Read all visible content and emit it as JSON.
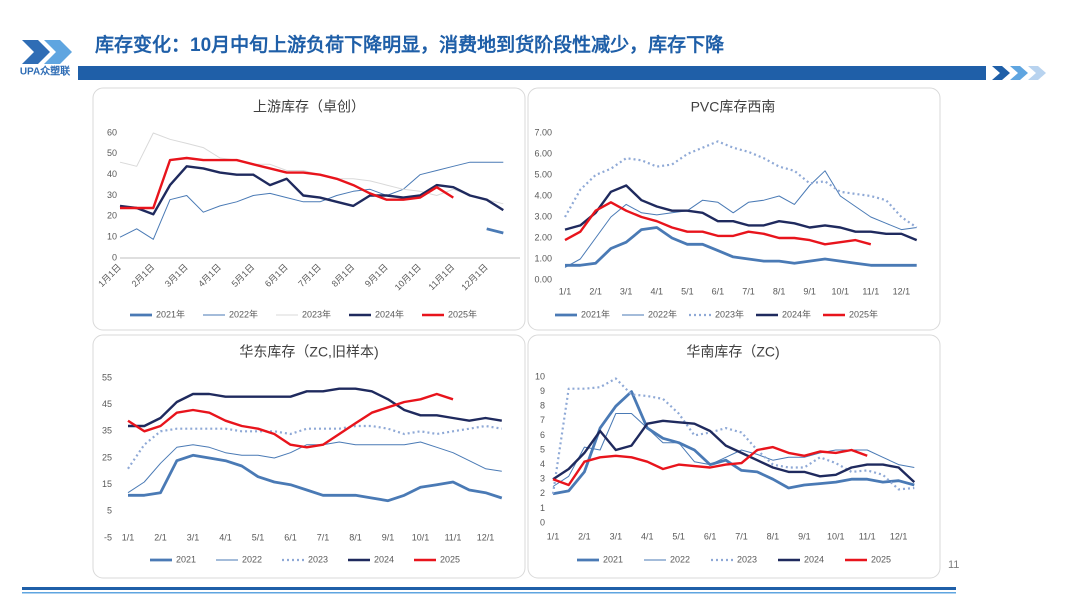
{
  "header": {
    "title": "库存变化：10月中旬上游负荷下降明显，消费地到货阶段性减少，库存下降",
    "logo": "UPA众塑联"
  },
  "page_number": "11",
  "chart_data": [
    {
      "type": "line",
      "title": "上游库存（卓创）",
      "categories": [
        "1月1日",
        null,
        "2月1日",
        null,
        "3月1日",
        null,
        "4月1日",
        null,
        "5月1日",
        null,
        "6月1日",
        null,
        "7月1日",
        null,
        "8月1日",
        null,
        "9月1日",
        null,
        "10月1日",
        null,
        "11月1日",
        null,
        "12月1日",
        null
      ],
      "ylim": [
        0,
        60
      ],
      "yticks": [
        0,
        10,
        20,
        30,
        40,
        50,
        60
      ],
      "grid": false,
      "series": [
        {
          "name": "2021年",
          "color": "#4a7ab5",
          "width": 2.8,
          "dash": false,
          "values": [
            null,
            null,
            null,
            null,
            null,
            null,
            null,
            null,
            null,
            null,
            null,
            null,
            null,
            null,
            null,
            null,
            null,
            null,
            null,
            null,
            null,
            null,
            14,
            12
          ]
        },
        {
          "name": "2022年",
          "color": "#4a7ab5",
          "width": 1,
          "dash": false,
          "values": [
            10,
            14,
            9,
            28,
            30,
            22,
            25,
            27,
            30,
            31,
            29,
            27,
            27,
            30,
            32,
            33,
            30,
            33,
            40,
            42,
            44,
            46,
            46,
            46
          ]
        },
        {
          "name": "2023年",
          "color": "#d9d9d9",
          "width": 1,
          "dash": false,
          "values": [
            46,
            44,
            60,
            57,
            55,
            53,
            48,
            47,
            45,
            45,
            42,
            42,
            40,
            38,
            38,
            37,
            35,
            33,
            32,
            30,
            33,
            30,
            28,
            26
          ]
        },
        {
          "name": "2024年",
          "color": "#1f2a5e",
          "width": 2.4,
          "dash": false,
          "values": [
            25,
            24,
            21,
            35,
            44,
            43,
            41,
            40,
            40,
            35,
            38,
            30,
            29,
            27,
            25,
            30,
            30,
            29,
            30,
            35,
            34,
            30,
            28,
            23
          ]
        },
        {
          "name": "2025年",
          "color": "#e8141c",
          "width": 2.4,
          "dash": false,
          "values": [
            24,
            24,
            24,
            47,
            48,
            47,
            47,
            47,
            45,
            43,
            41,
            41,
            40,
            38,
            35,
            31,
            28,
            28,
            29,
            34,
            29,
            null,
            null,
            null
          ]
        }
      ]
    },
    {
      "type": "line",
      "title": "PVC库存西南",
      "categories": [
        "1/1",
        null,
        "2/1",
        null,
        "3/1",
        null,
        "4/1",
        null,
        "5/1",
        null,
        "6/1",
        null,
        "7/1",
        null,
        "8/1",
        null,
        "9/1",
        null,
        "10/1",
        null,
        "11/1",
        null,
        "12/1",
        null
      ],
      "ylim": [
        0,
        7
      ],
      "yticks": [
        {
          "value": 0,
          "label": "0.00"
        },
        {
          "value": 1,
          "label": "1.00"
        },
        {
          "value": 2,
          "label": "2.00"
        },
        {
          "value": 3,
          "label": "3.00"
        },
        {
          "value": 4,
          "label": "4.00"
        },
        {
          "value": 5,
          "label": "5.00"
        },
        {
          "value": 6,
          "label": "6.00"
        },
        {
          "value": 7,
          "label": "7.00"
        }
      ],
      "grid": false,
      "series": [
        {
          "name": "2021年",
          "color": "#4a7ab5",
          "width": 2.8,
          "dash": false,
          "values": [
            0.7,
            0.7,
            0.8,
            1.5,
            1.8,
            2.4,
            2.5,
            2.0,
            1.7,
            1.7,
            1.4,
            1.1,
            1.0,
            0.9,
            0.9,
            0.8,
            0.9,
            1.0,
            0.9,
            0.8,
            0.7,
            0.7,
            0.7,
            0.7
          ]
        },
        {
          "name": "2022年",
          "color": "#4a7ab5",
          "width": 1,
          "dash": false,
          "values": [
            0.6,
            1.0,
            2.0,
            3.0,
            3.6,
            3.2,
            3.1,
            3.2,
            3.3,
            3.8,
            3.7,
            3.2,
            3.7,
            3.8,
            4.0,
            3.6,
            4.5,
            5.2,
            4.0,
            3.5,
            3.0,
            2.7,
            2.4,
            2.5
          ]
        },
        {
          "name": "2023年",
          "color": "#8fa9d6",
          "width": 2.2,
          "dash": true,
          "values": [
            3.0,
            4.3,
            5.0,
            5.3,
            5.8,
            5.7,
            5.4,
            5.5,
            6.0,
            6.3,
            6.6,
            6.3,
            6.1,
            5.8,
            5.4,
            5.2,
            4.6,
            4.7,
            4.2,
            4.1,
            4.0,
            3.8,
            3.0,
            2.5
          ]
        },
        {
          "name": "2024年",
          "color": "#1f2a5e",
          "width": 2.4,
          "dash": false,
          "values": [
            2.4,
            2.6,
            3.2,
            4.2,
            4.5,
            3.8,
            3.5,
            3.3,
            3.3,
            3.2,
            2.8,
            2.8,
            2.6,
            2.6,
            2.8,
            2.7,
            2.5,
            2.6,
            2.5,
            2.3,
            2.3,
            2.2,
            2.2,
            1.9
          ]
        },
        {
          "name": "2025年",
          "color": "#e8141c",
          "width": 2.4,
          "dash": false,
          "values": [
            1.9,
            2.3,
            3.3,
            3.7,
            3.3,
            3.0,
            2.8,
            2.5,
            2.3,
            2.3,
            2.1,
            2.1,
            2.3,
            2.2,
            2.0,
            2.0,
            1.9,
            1.7,
            1.8,
            1.9,
            1.7,
            null,
            null,
            null
          ]
        }
      ]
    },
    {
      "type": "line",
      "title": "华东库存（ZC,旧样本)",
      "categories": [
        "1/1",
        null,
        "2/1",
        null,
        "3/1",
        null,
        "4/1",
        null,
        "5/1",
        null,
        "6/1",
        null,
        "7/1",
        null,
        "8/1",
        null,
        "9/1",
        null,
        "10/1",
        null,
        "11/1",
        null,
        "12/1",
        null
      ],
      "ylim": [
        -5,
        55
      ],
      "yticks": [
        -5,
        5,
        15,
        25,
        35,
        45,
        55
      ],
      "grid": false,
      "series": [
        {
          "name": "2021",
          "color": "#4a7ab5",
          "width": 2.8,
          "dash": false,
          "values": [
            11,
            11,
            12,
            24,
            26,
            25,
            24,
            22,
            18,
            16,
            15,
            13,
            11,
            11,
            11,
            10,
            9,
            11,
            14,
            15,
            16,
            13,
            12,
            10
          ]
        },
        {
          "name": "2022",
          "color": "#4a7ab5",
          "width": 1,
          "dash": false,
          "values": [
            12,
            16,
            23,
            29,
            30,
            29,
            27,
            26,
            26,
            25,
            27,
            30,
            30,
            31,
            30,
            30,
            30,
            30,
            31,
            29,
            27,
            24,
            21,
            20
          ]
        },
        {
          "name": "2023",
          "color": "#8fa9d6",
          "width": 2.2,
          "dash": true,
          "values": [
            21,
            30,
            35,
            36,
            36,
            36,
            36,
            35,
            35,
            35,
            34,
            36,
            36,
            36,
            37,
            37,
            36,
            34,
            35,
            34,
            35,
            36,
            37,
            36
          ]
        },
        {
          "name": "2024",
          "color": "#1f2a5e",
          "width": 2.4,
          "dash": false,
          "values": [
            37,
            37,
            40,
            46,
            49,
            49,
            48,
            48,
            48,
            48,
            48,
            50,
            50,
            51,
            51,
            50,
            47,
            43,
            41,
            41,
            40,
            39,
            40,
            39
          ]
        },
        {
          "name": "2025",
          "color": "#e8141c",
          "width": 2.4,
          "dash": false,
          "values": [
            39,
            35,
            37,
            42,
            43,
            42,
            39,
            37,
            36,
            34,
            30,
            29,
            30,
            34,
            38,
            42,
            44,
            46,
            47,
            49,
            47,
            null,
            null,
            null
          ]
        }
      ]
    },
    {
      "type": "line",
      "title": "华南库存（ZC)",
      "categories": [
        "1/1",
        null,
        "2/1",
        null,
        "3/1",
        null,
        "4/1",
        null,
        "5/1",
        null,
        "6/1",
        null,
        "7/1",
        null,
        "8/1",
        null,
        "9/1",
        null,
        "10/1",
        null,
        "11/1",
        null,
        "12/1",
        null
      ],
      "ylim": [
        0,
        10
      ],
      "yticks": [
        0,
        1,
        2,
        3,
        4,
        5,
        6,
        7,
        8,
        9,
        10
      ],
      "grid": false,
      "series": [
        {
          "name": "2021",
          "color": "#4a7ab5",
          "width": 2.8,
          "dash": false,
          "values": [
            2,
            2.2,
            3.5,
            6.5,
            8,
            9,
            6.5,
            5.8,
            5.5,
            5,
            4,
            4.3,
            3.6,
            3.5,
            3,
            2.4,
            2.6,
            2.7,
            2.8,
            3,
            3,
            2.8,
            2.9,
            2.6
          ]
        },
        {
          "name": "2022",
          "color": "#4a7ab5",
          "width": 1,
          "dash": false,
          "values": [
            2.5,
            3.2,
            5.2,
            5.0,
            7.5,
            7.5,
            6.5,
            5.5,
            5.5,
            4.2,
            4.0,
            4.5,
            5.0,
            4.7,
            4.3,
            4.5,
            4.5,
            4.8,
            5.0,
            5.0,
            5.0,
            4.5,
            4.0,
            3.8
          ]
        },
        {
          "name": "2023",
          "color": "#8fa9d6",
          "width": 2.2,
          "dash": true,
          "values": [
            2,
            9.2,
            9.2,
            9.3,
            9.9,
            8.8,
            8.7,
            8.5,
            7.5,
            6.0,
            6.2,
            6.5,
            6.2,
            5.0,
            4.0,
            3.8,
            3.8,
            4.5,
            4.1,
            3.5,
            3.6,
            3.3,
            2.3,
            2.4
          ]
        },
        {
          "name": "2024",
          "color": "#1f2a5e",
          "width": 2.4,
          "dash": false,
          "values": [
            3,
            3.7,
            4.8,
            6.3,
            5.0,
            5.3,
            6.8,
            7.0,
            6.9,
            6.8,
            6.3,
            5.3,
            4.8,
            4.3,
            3.8,
            3.5,
            3.5,
            3.2,
            3.3,
            3.8,
            4.0,
            4.0,
            3.8,
            2.8
          ]
        },
        {
          "name": "2025",
          "color": "#e8141c",
          "width": 2.4,
          "dash": false,
          "values": [
            3,
            2.6,
            4.2,
            4.5,
            4.6,
            4.5,
            4.2,
            3.7,
            4.0,
            3.9,
            3.8,
            4.0,
            4.1,
            5.0,
            5.2,
            4.8,
            4.6,
            4.9,
            4.8,
            5.0,
            4.6,
            null,
            null,
            null
          ]
        }
      ]
    }
  ]
}
